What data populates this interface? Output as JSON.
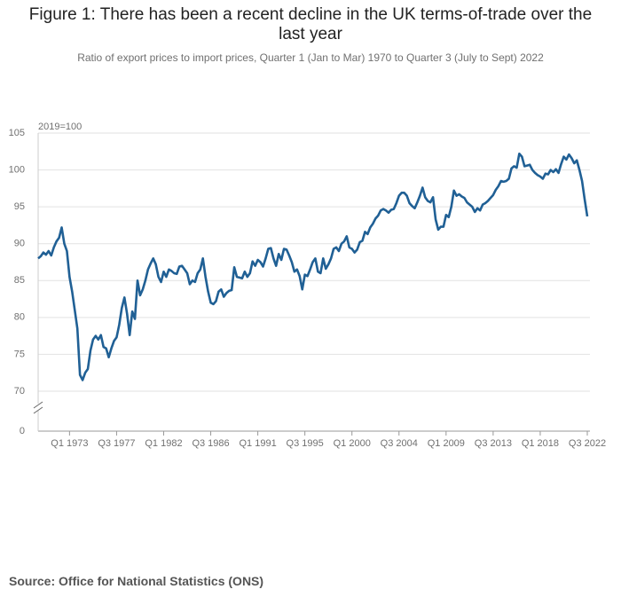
{
  "chart_data": {
    "type": "line",
    "title": "Figure 1: There has been a recent decline in the UK terms-of-trade over the last year",
    "subtitle": "Ratio of export prices to import prices, Quarter 1 (Jan to Mar) 1970 to Quarter 3 (July to Sept) 2022",
    "y_label": "2019=100",
    "source": "Source: Office for National Statistics (ONS)",
    "color": "#206095",
    "ylim": [
      65,
      105
    ],
    "yticks": [
      0,
      70,
      75,
      80,
      85,
      90,
      95,
      100,
      105
    ],
    "axis_break": true,
    "grid": true,
    "categories": [
      null,
      null,
      null,
      null,
      null,
      null,
      null,
      null,
      null,
      null,
      null,
      null,
      "Q1 1973",
      null,
      null,
      null,
      null,
      null,
      null,
      null,
      null,
      null,
      null,
      null,
      null,
      null,
      null,
      null,
      null,
      null,
      "Q3 1977",
      null,
      null,
      null,
      null,
      null,
      null,
      null,
      null,
      null,
      null,
      null,
      null,
      null,
      null,
      null,
      null,
      null,
      "Q1 1982",
      null,
      null,
      null,
      null,
      null,
      null,
      null,
      null,
      null,
      null,
      null,
      null,
      null,
      null,
      null,
      null,
      null,
      "Q3 1986",
      null,
      null,
      null,
      null,
      null,
      null,
      null,
      null,
      null,
      null,
      null,
      null,
      null,
      null,
      null,
      null,
      null,
      "Q1 1991",
      null,
      null,
      null,
      null,
      null,
      null,
      null,
      null,
      null,
      null,
      null,
      null,
      null,
      null,
      null,
      null,
      null,
      "Q3 1995",
      null,
      null,
      null,
      null,
      null,
      null,
      null,
      null,
      null,
      null,
      null,
      null,
      null,
      null,
      null,
      null,
      null,
      "Q1 2000",
      null,
      null,
      null,
      null,
      null,
      null,
      null,
      null,
      null,
      null,
      null,
      null,
      null,
      null,
      null,
      null,
      null,
      "Q3 2004",
      null,
      null,
      null,
      null,
      null,
      null,
      null,
      null,
      null,
      null,
      null,
      null,
      null,
      null,
      null,
      null,
      null,
      "Q1 2009",
      null,
      null,
      null,
      null,
      null,
      null,
      null,
      null,
      null,
      null,
      null,
      null,
      null,
      null,
      null,
      null,
      null,
      "Q3 2013",
      null,
      null,
      null,
      null,
      null,
      null,
      null,
      null,
      null,
      null,
      null,
      null,
      null,
      null,
      null,
      null,
      null,
      "Q1 2018",
      null,
      null,
      null,
      null,
      null,
      null,
      null,
      null,
      null,
      null,
      null,
      null,
      null,
      null,
      null,
      null,
      null,
      "Q3 2022"
    ],
    "values": [
      88.0,
      88.3,
      88.8,
      88.5,
      89.0,
      88.4,
      89.5,
      90.3,
      90.8,
      92.2,
      90.0,
      89.0,
      85.5,
      83.5,
      81.0,
      78.5,
      72.2,
      71.5,
      72.5,
      73.0,
      75.5,
      77.0,
      77.5,
      77.0,
      77.6,
      76.0,
      75.8,
      74.6,
      75.8,
      76.8,
      77.3,
      79.0,
      81.3,
      82.7,
      80.5,
      77.6,
      80.8,
      79.8,
      85.0,
      83.0,
      83.8,
      85.0,
      86.5,
      87.3,
      88.0,
      87.2,
      85.5,
      84.8,
      86.2,
      85.5,
      86.5,
      86.3,
      86.0,
      85.9,
      86.9,
      87.0,
      86.5,
      86.0,
      84.5,
      85.0,
      84.8,
      86.0,
      86.5,
      88.0,
      85.5,
      83.5,
      82.0,
      81.8,
      82.2,
      83.5,
      83.8,
      82.8,
      83.3,
      83.6,
      83.7,
      86.8,
      85.5,
      85.4,
      85.3,
      86.2,
      85.5,
      86.0,
      87.6,
      87.0,
      87.8,
      87.5,
      86.9,
      88.0,
      89.3,
      89.4,
      88.0,
      87.0,
      88.6,
      87.8,
      89.3,
      89.2,
      88.4,
      87.5,
      86.2,
      86.5,
      85.6,
      83.8,
      85.8,
      85.6,
      86.5,
      87.5,
      88.0,
      86.2,
      86.0,
      88.0,
      86.6,
      87.2,
      88.0,
      89.3,
      89.5,
      89.0,
      90.0,
      90.3,
      91.0,
      89.5,
      89.3,
      88.8,
      89.2,
      90.2,
      90.4,
      91.6,
      91.3,
      92.2,
      92.7,
      93.4,
      93.8,
      94.5,
      94.7,
      94.5,
      94.2,
      94.6,
      94.7,
      95.5,
      96.5,
      96.9,
      96.9,
      96.5,
      95.5,
      95.1,
      94.8,
      95.6,
      96.5,
      97.6,
      96.3,
      95.8,
      95.6,
      96.3,
      93.3,
      91.9,
      92.3,
      92.3,
      93.9,
      93.6,
      95.0,
      97.2,
      96.5,
      96.7,
      96.4,
      96.2,
      95.6,
      95.3,
      95.0,
      94.3,
      94.8,
      94.5,
      95.3,
      95.5,
      95.8,
      96.2,
      96.6,
      97.3,
      97.8,
      98.5,
      98.4,
      98.5,
      98.8,
      100.2,
      100.5,
      100.3,
      102.2,
      101.8,
      100.5,
      100.6,
      100.7,
      100.0,
      99.6,
      99.3,
      99.1,
      98.8,
      99.5,
      99.4,
      100.0,
      99.7,
      100.1,
      99.6,
      100.8,
      101.8,
      101.4,
      102.1,
      101.6,
      100.9,
      101.3,
      100.0,
      98.5,
      96.0,
      93.7
    ]
  }
}
